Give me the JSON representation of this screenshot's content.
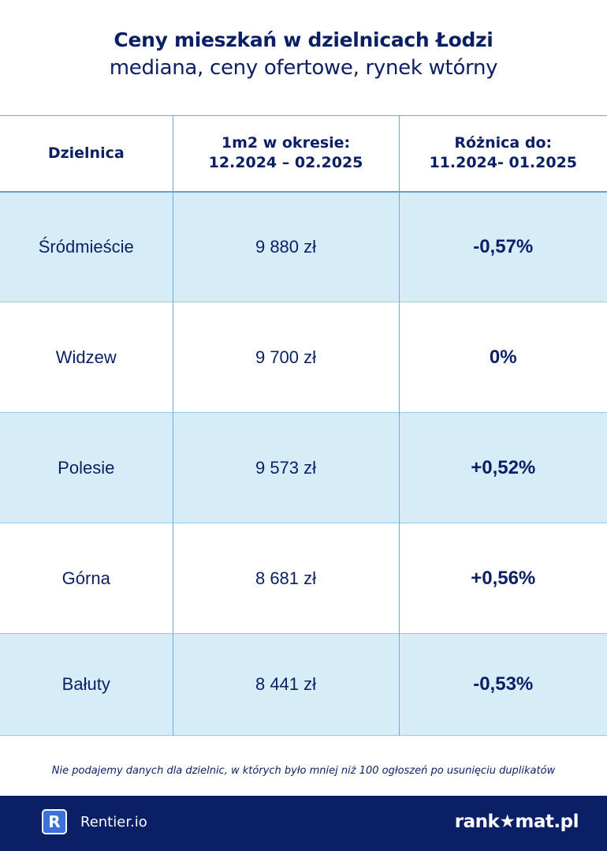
{
  "header": {
    "title": "Ceny mieszkań w dzielnicach Łodzi",
    "subtitle": "mediana, ceny ofertowe, rynek wtórny"
  },
  "table": {
    "columns": {
      "district": "Dzielnica",
      "price_line1": "1m2 w okresie:",
      "price_line2": "12.2024 – 02.2025",
      "diff_line1": "Różnica do:",
      "diff_line2": "11.2024- 01.2025"
    },
    "rows": [
      {
        "district": "Śródmieście",
        "price": "9 880 zł",
        "diff": "-0,57%"
      },
      {
        "district": "Widzew",
        "price": "9 700 zł",
        "diff": "0%"
      },
      {
        "district": "Polesie",
        "price": "9 573 zł",
        "diff": "+0,52%"
      },
      {
        "district": "Górna",
        "price": "8 681 zł",
        "diff": "+0,56%"
      },
      {
        "district": "Bałuty",
        "price": "8 441 zł",
        "diff": "-0,53%"
      }
    ]
  },
  "footnote": "Nie podajemy danych dla dzielnic, w których było mniej niż 100 ogłoszeń po usunięciu duplikatów",
  "footer": {
    "rentier_logo_letter": "R",
    "rentier_name": "Rentier.io",
    "rankomat_name": "rank★mat.pl"
  },
  "colors": {
    "navy": "#0b1f66",
    "row_shade": "#d6edf8",
    "grid_line": "#6aaed8"
  }
}
